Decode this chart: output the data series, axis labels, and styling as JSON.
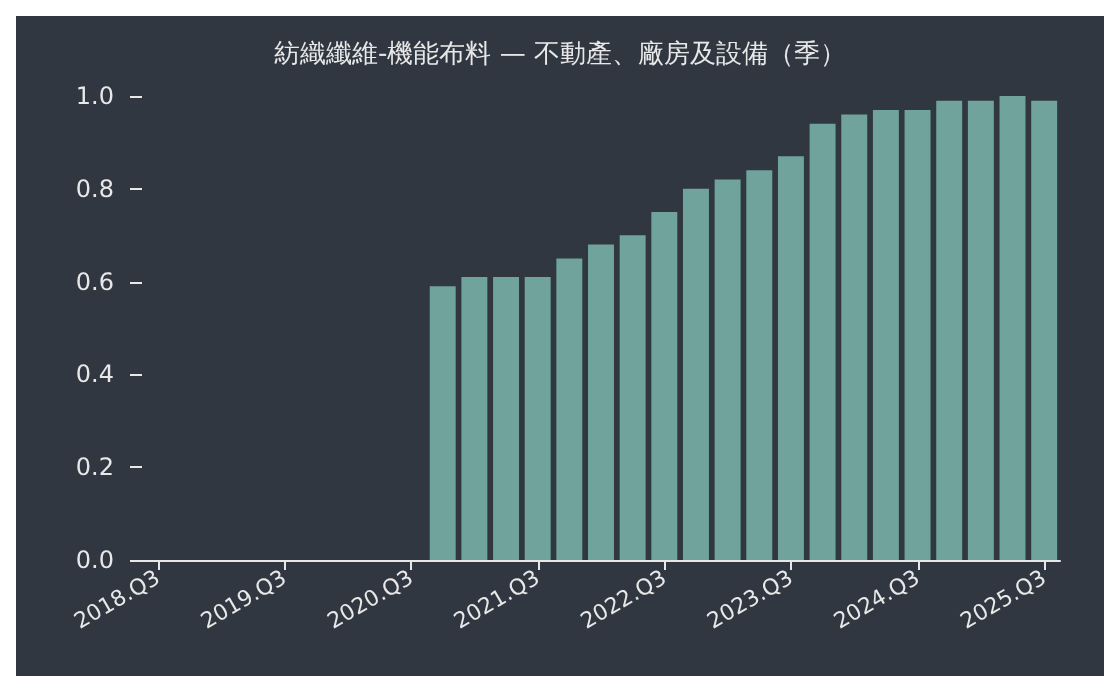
{
  "chart_data": {
    "type": "bar",
    "title": "紡織纖維-機能布料 — 不動產、廠房及設備（季）",
    "categories": [
      "2018.Q3",
      null,
      null,
      null,
      "2019.Q3",
      null,
      null,
      null,
      "2020.Q3",
      null,
      null,
      null,
      "2021.Q3",
      null,
      null,
      null,
      "2022.Q3",
      null,
      null,
      null,
      "2023.Q3",
      null,
      null,
      null,
      "2024.Q3",
      null,
      null,
      null,
      "2025.Q3"
    ],
    "values": [
      null,
      null,
      null,
      null,
      null,
      null,
      null,
      null,
      null,
      0.59,
      0.61,
      0.61,
      0.61,
      0.65,
      0.68,
      0.7,
      0.75,
      0.8,
      0.82,
      0.84,
      0.87,
      0.94,
      0.96,
      0.97,
      0.97,
      0.99,
      0.99,
      1.0,
      0.99
    ],
    "color": "#6fa39c",
    "ylim": [
      0,
      1
    ],
    "yticks": [
      {
        "value": 0,
        "label": "0.0"
      },
      0.2,
      0.4,
      0.6,
      0.8,
      {
        "value": 1,
        "label": "1.0"
      }
    ],
    "grid": false
  }
}
